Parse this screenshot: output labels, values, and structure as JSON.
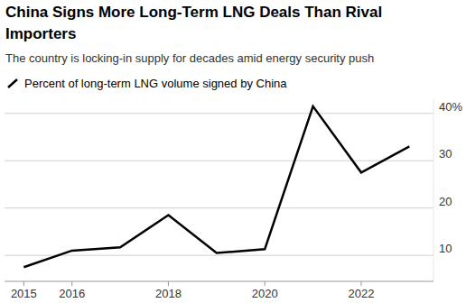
{
  "chart_data": {
    "type": "line",
    "title": "China Signs More Long-Term LNG Deals Than Rival Importers",
    "subtitle": "The country is locking-in supply for decades amid energy security push",
    "x": [
      2015,
      2016,
      2017,
      2018,
      2019,
      2020,
      2021,
      2022,
      2023
    ],
    "series": [
      {
        "name": "Percent of long-term LNG volume signed by China",
        "color": "#000000",
        "values": [
          7.5,
          11,
          11.7,
          18.5,
          10.5,
          11.3,
          41.5,
          27.5,
          33
        ]
      }
    ],
    "xlim": [
      2014.6,
      2023.5
    ],
    "xticks": [
      2015,
      2016,
      2018,
      2020,
      2022
    ],
    "ylim": [
      4.5,
      43
    ],
    "yticks": [
      10,
      20,
      30,
      {
        "value": 40,
        "label": "40%"
      }
    ],
    "grid": true,
    "legend": "top-left"
  }
}
